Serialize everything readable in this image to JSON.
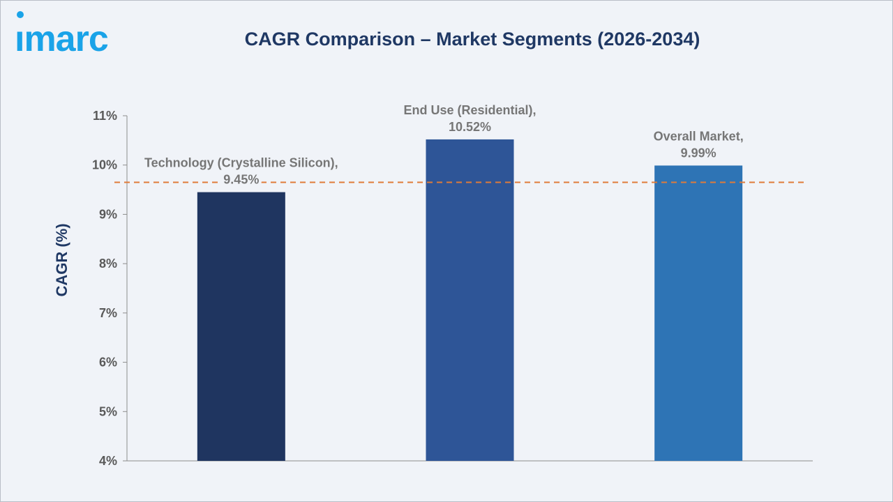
{
  "brand": {
    "logo_text": "imarc"
  },
  "chart_data": {
    "type": "bar",
    "title": "CAGR Comparison – Market Segments (2026-2034)",
    "xlabel": "",
    "ylabel": "CAGR (%)",
    "ylim": [
      4,
      11
    ],
    "yticks": [
      4,
      5,
      6,
      7,
      8,
      9,
      10,
      11
    ],
    "ytick_labels": [
      "4%",
      "5%",
      "6%",
      "7%",
      "8%",
      "9%",
      "10%",
      "11%"
    ],
    "categories": [
      "Technology (Crystalline Silicon)",
      "End Use (Residential)",
      "Overall Market"
    ],
    "values": [
      9.45,
      10.52,
      9.99
    ],
    "data_labels": [
      [
        "Technology (Crystalline Silicon),",
        "9.45%"
      ],
      [
        "End Use (Residential),",
        "10.52%"
      ],
      [
        "Overall Market,",
        "9.99%"
      ]
    ],
    "bar_colors": [
      "#1f3560",
      "#2e5597",
      "#2e74b5"
    ],
    "reference_line": {
      "style": "dashed",
      "color": "#e07b39",
      "value": 9.65
    },
    "grid": false,
    "legend": "none"
  }
}
